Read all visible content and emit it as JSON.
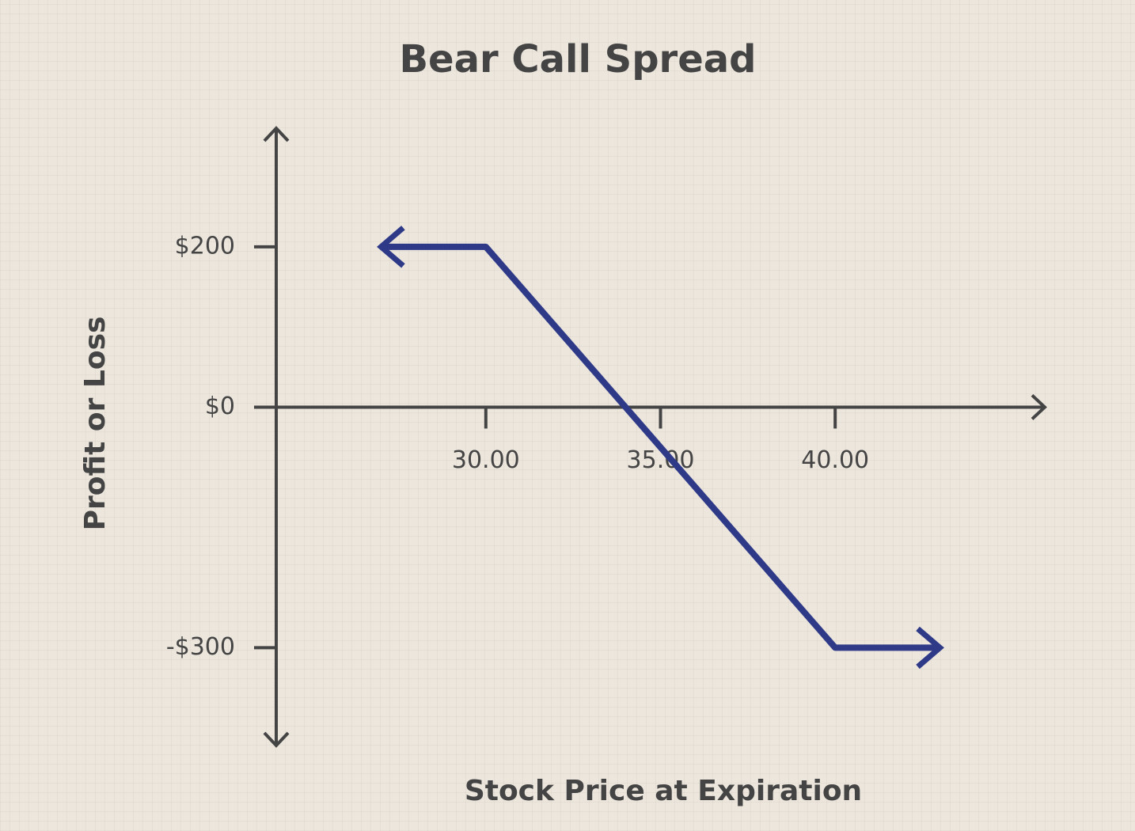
{
  "chart_data": {
    "type": "line",
    "title": "Bear Call Spread",
    "x_label": "Stock Price at Expiration",
    "y_label": "Profit or Loss",
    "x": [
      27,
      30,
      40,
      43
    ],
    "values": [
      200,
      200,
      -300,
      -300
    ],
    "color": "#2e3a87",
    "xlim": [
      24,
      46
    ],
    "ylim": [
      -420,
      340
    ],
    "xticks": [
      {
        "value": 30,
        "label": "30.00"
      },
      {
        "value": 35,
        "label": "35.00"
      },
      {
        "value": 40,
        "label": "40.00"
      }
    ],
    "yticks": [
      {
        "value": 200,
        "label": "$200"
      },
      {
        "value": 0,
        "label": "$0"
      },
      {
        "value": -300,
        "label": "-$300"
      }
    ]
  }
}
